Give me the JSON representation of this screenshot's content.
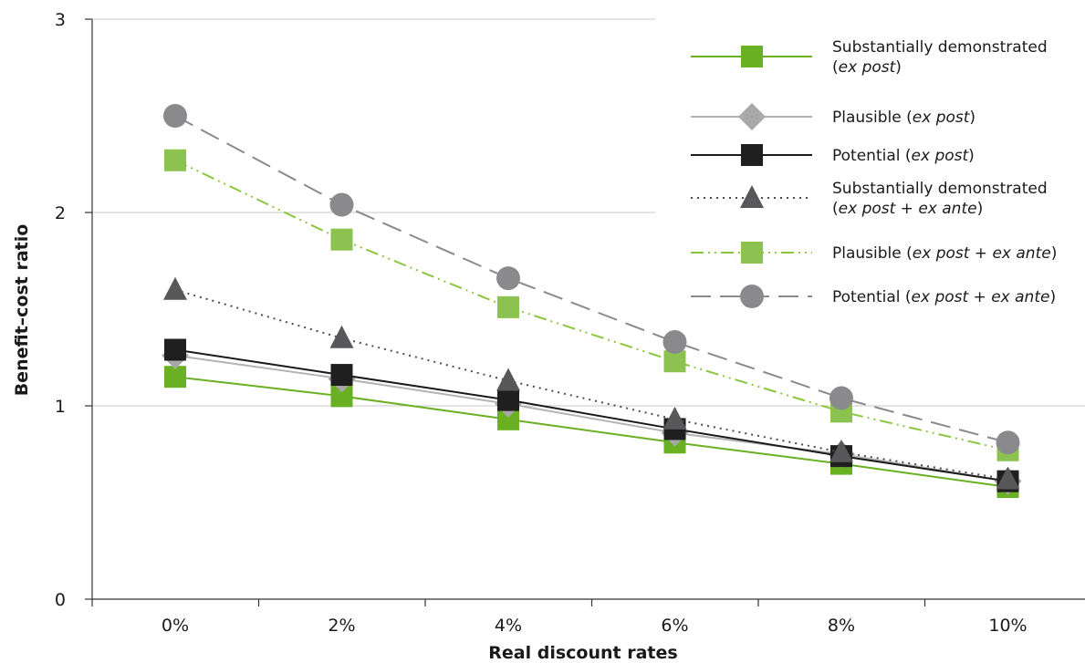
{
  "chart_data": {
    "type": "line",
    "title": "",
    "xlabel": "Real discount rates",
    "ylabel": "Benefit–cost ratio",
    "categories": [
      "0%",
      "2%",
      "4%",
      "6%",
      "8%",
      "10%"
    ],
    "y_ticks": [
      "0",
      "1",
      "2",
      "3"
    ],
    "ylim": [
      0,
      3
    ],
    "grid": "horizontal",
    "legend_position": "top-right",
    "series": [
      {
        "name": "Substantially demonstrated (ex post)",
        "legend_lines": [
          [
            {
              "t": "Substantially demonstrated",
              "i": false
            }
          ],
          [
            {
              "t": "(",
              "i": false
            },
            {
              "t": "ex post",
              "i": true
            },
            {
              "t": ")",
              "i": false
            }
          ]
        ],
        "values": [
          1.15,
          1.05,
          0.93,
          0.81,
          0.7,
          0.58
        ],
        "color": "#6ab023",
        "dash": "",
        "marker": "square",
        "marker_color": "#6ab023"
      },
      {
        "name": "Plausible (ex post)",
        "legend_lines": [
          [
            {
              "t": "Plausible (",
              "i": false
            },
            {
              "t": "ex post",
              "i": true
            },
            {
              "t": ")",
              "i": false
            }
          ]
        ],
        "values": [
          1.26,
          1.14,
          1.01,
          0.86,
          0.75,
          0.61
        ],
        "color": "#b3b3b3",
        "dash": "",
        "marker": "diamond",
        "marker_color": "#a8a8a8"
      },
      {
        "name": "Potential (ex post)",
        "legend_lines": [
          [
            {
              "t": "Potential (",
              "i": false
            },
            {
              "t": "ex post",
              "i": true
            },
            {
              "t": ")",
              "i": false
            }
          ]
        ],
        "values": [
          1.29,
          1.16,
          1.03,
          0.88,
          0.74,
          0.61
        ],
        "color": "#1a1a1a",
        "dash": "",
        "marker": "square",
        "marker_color": "#1f1f1f"
      },
      {
        "name": "Substantially demonstrated (ex post + ex ante)",
        "legend_lines": [
          [
            {
              "t": "Substantially demonstrated",
              "i": false
            }
          ],
          [
            {
              "t": "(",
              "i": false
            },
            {
              "t": "ex post",
              "i": true
            },
            {
              "t": " + ",
              "i": false
            },
            {
              "t": "ex ante",
              "i": true
            },
            {
              "t": ")",
              "i": false
            }
          ]
        ],
        "values": [
          1.6,
          1.35,
          1.13,
          0.93,
          0.76,
          0.62
        ],
        "color": "#4d4d4d",
        "dash": "2,5",
        "marker": "triangle",
        "marker_color": "#58585a"
      },
      {
        "name": "Plausible (ex post + ex ante)",
        "legend_lines": [
          [
            {
              "t": "Plausible (",
              "i": false
            },
            {
              "t": "ex post",
              "i": true
            },
            {
              "t": " + ",
              "i": false
            },
            {
              "t": "ex ante",
              "i": true
            },
            {
              "t": ")",
              "i": false
            }
          ]
        ],
        "values": [
          2.27,
          1.86,
          1.51,
          1.23,
          0.97,
          0.77
        ],
        "color": "#8cc63f",
        "dash": "14,5,2,5,2,5",
        "marker": "square",
        "marker_color": "#8cc350"
      },
      {
        "name": "Potential (ex post + ex ante)",
        "legend_lines": [
          [
            {
              "t": "Potential (",
              "i": false
            },
            {
              "t": "ex post",
              "i": true
            },
            {
              "t": " + ",
              "i": false
            },
            {
              "t": "ex ante",
              "i": true
            },
            {
              "t": ")",
              "i": false
            }
          ]
        ],
        "values": [
          2.5,
          2.04,
          1.66,
          1.33,
          1.04,
          0.81
        ],
        "color": "#8a8a8c",
        "dash": "22,10",
        "marker": "circle",
        "marker_color": "#8a8a8c"
      }
    ]
  }
}
